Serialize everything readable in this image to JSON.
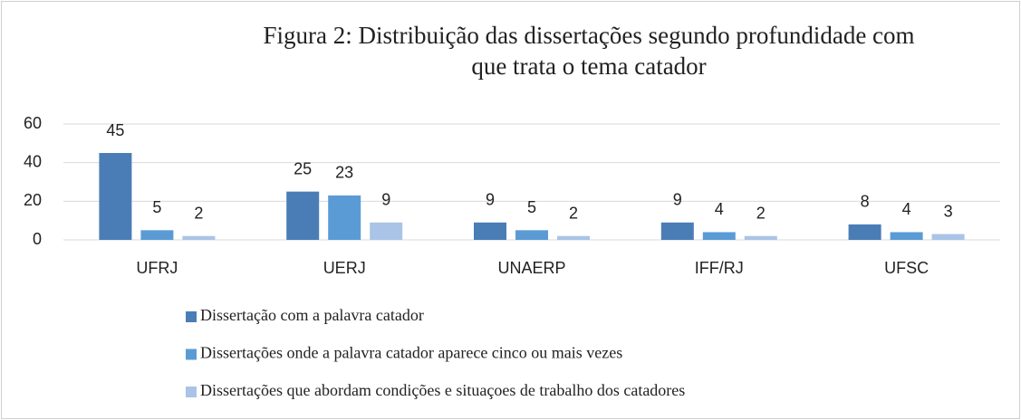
{
  "chart_data": {
    "type": "bar",
    "title": [
      "Figura 2: Distribuição das dissertações segundo profundidade com",
      "que trata o tema catador"
    ],
    "categories": [
      "UFRJ",
      "UERJ",
      "UNAERP",
      "IFF/RJ",
      "UFSC"
    ],
    "series": [
      {
        "name": "Dissertação com a palavra catador",
        "color": "#4a7db5",
        "values": [
          45,
          25,
          9,
          9,
          8
        ]
      },
      {
        "name": "Dissertações onde a palavra catador aparece cinco ou mais vezes",
        "color": "#5b9bd5",
        "values": [
          5,
          23,
          5,
          4,
          4
        ]
      },
      {
        "name": "Dissertações que abordam condições e situaçoes de trabalho dos catadores",
        "color": "#a9c4e6",
        "values": [
          2,
          9,
          2,
          2,
          3
        ]
      }
    ],
    "ylim": [
      0,
      60
    ],
    "yticks": [
      0,
      20,
      40,
      60
    ],
    "grid": true
  }
}
